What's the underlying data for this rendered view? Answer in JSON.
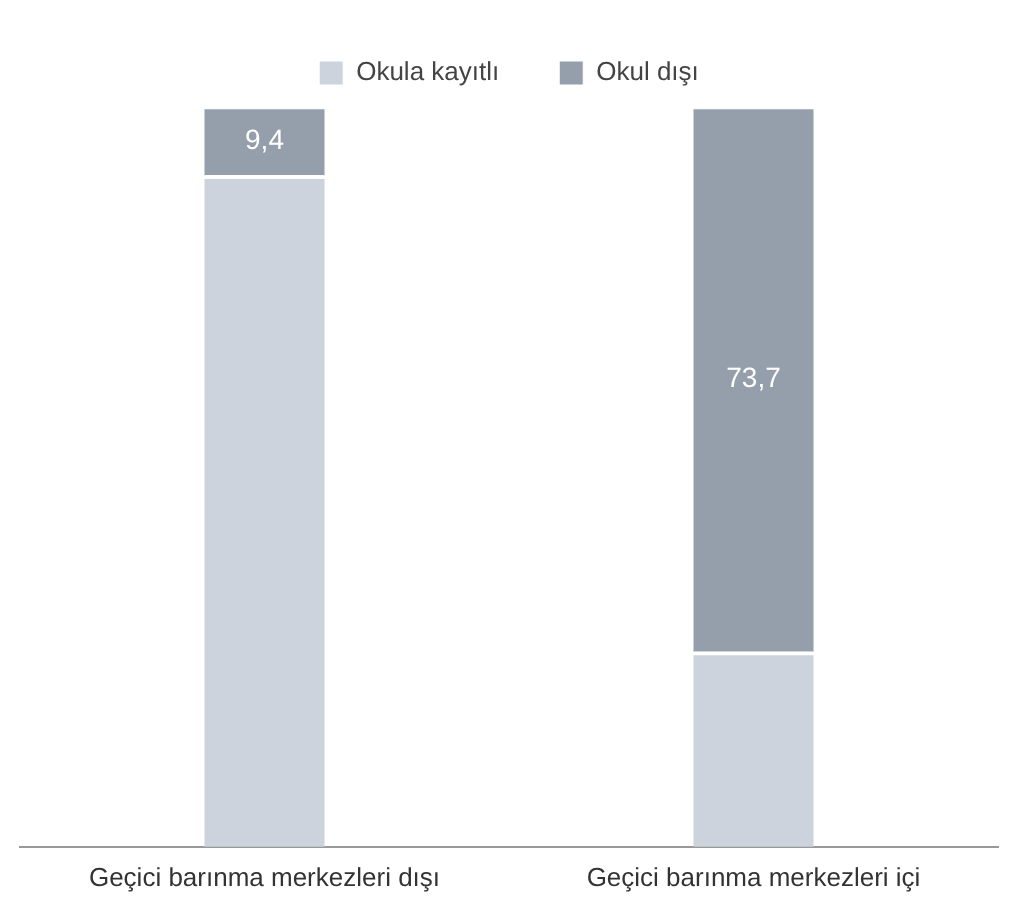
{
  "chart_data": {
    "type": "bar",
    "stacked": true,
    "categories": [
      "Geçici barınma merkezleri dışı",
      "Geçici barınma merkezleri içi"
    ],
    "series": [
      {
        "name": "Okula kayıtlı",
        "color": "#ccd3dc",
        "values": [
          90.6,
          26.3
        ],
        "value_labels": [
          null,
          null
        ]
      },
      {
        "name": "Okul dışı",
        "color": "#959fab",
        "values": [
          9.4,
          73.7
        ],
        "value_labels": [
          "9,4",
          "73,7"
        ]
      }
    ],
    "legend": "top",
    "grid": false
  }
}
